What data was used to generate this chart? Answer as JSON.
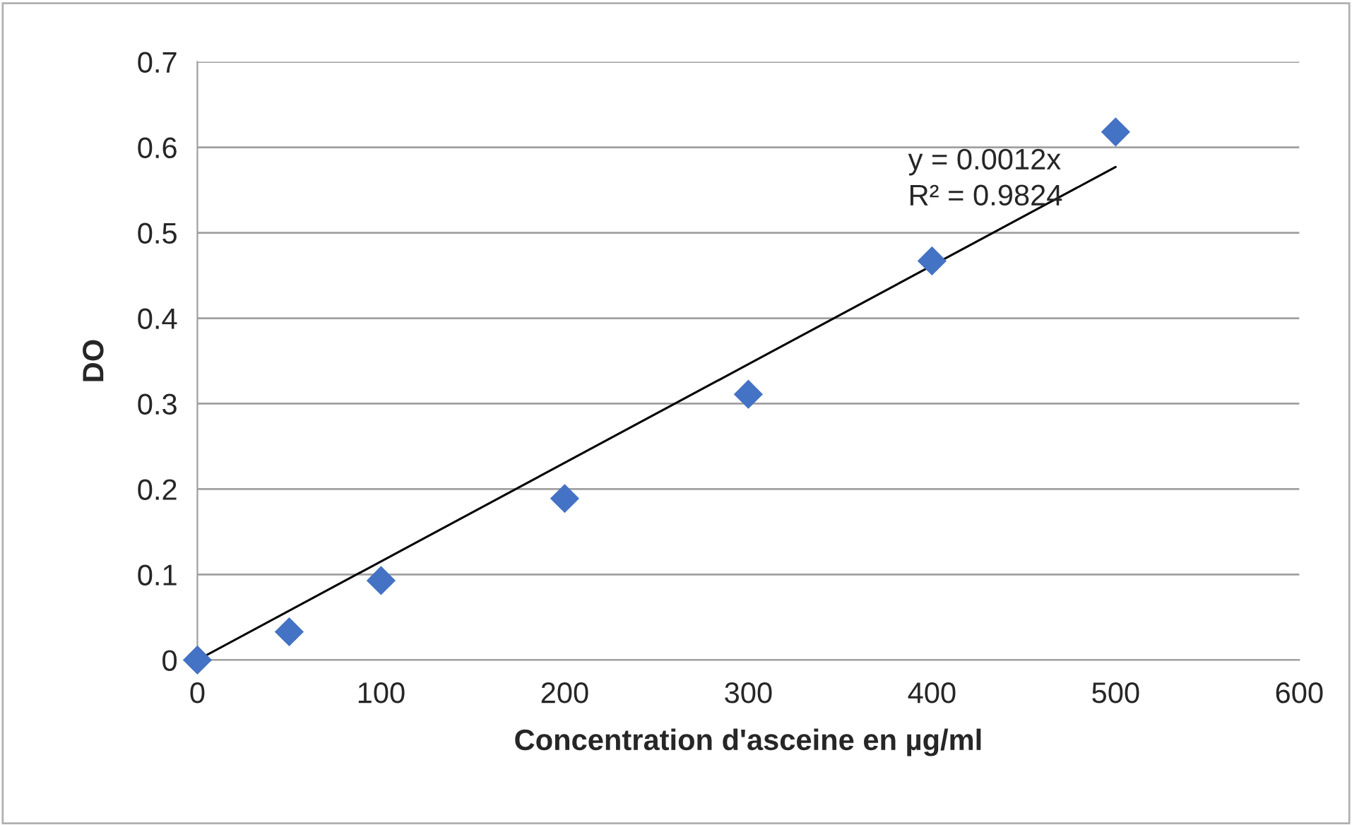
{
  "chart_data": {
    "type": "scatter",
    "xlabel": "Concentration d'asceine en µg/ml",
    "ylabel": "DO",
    "x": [
      0,
      50,
      100,
      200,
      300,
      400,
      500
    ],
    "series": [
      {
        "type": "scatter",
        "color": "#4472c4",
        "marker": "diamond",
        "values": [
          0,
          0.033,
          0.093,
          0.189,
          0.311,
          0.467,
          0.618
        ]
      },
      {
        "type": "line",
        "color": "#000000",
        "marker": "none",
        "x": [
          0,
          500
        ],
        "values": [
          0,
          0.577
        ]
      }
    ],
    "xlim": [
      0,
      600
    ],
    "xticks": [
      0,
      100,
      200,
      300,
      400,
      500,
      600
    ],
    "ylim": [
      0,
      0.7
    ],
    "yticks": [
      0,
      0.1,
      0.2,
      0.3,
      0.4,
      0.5,
      0.6,
      0.7
    ],
    "grid": "y",
    "legend": false,
    "annotations": [
      "y = 0.0012x\nR² = 0.9824"
    ]
  }
}
